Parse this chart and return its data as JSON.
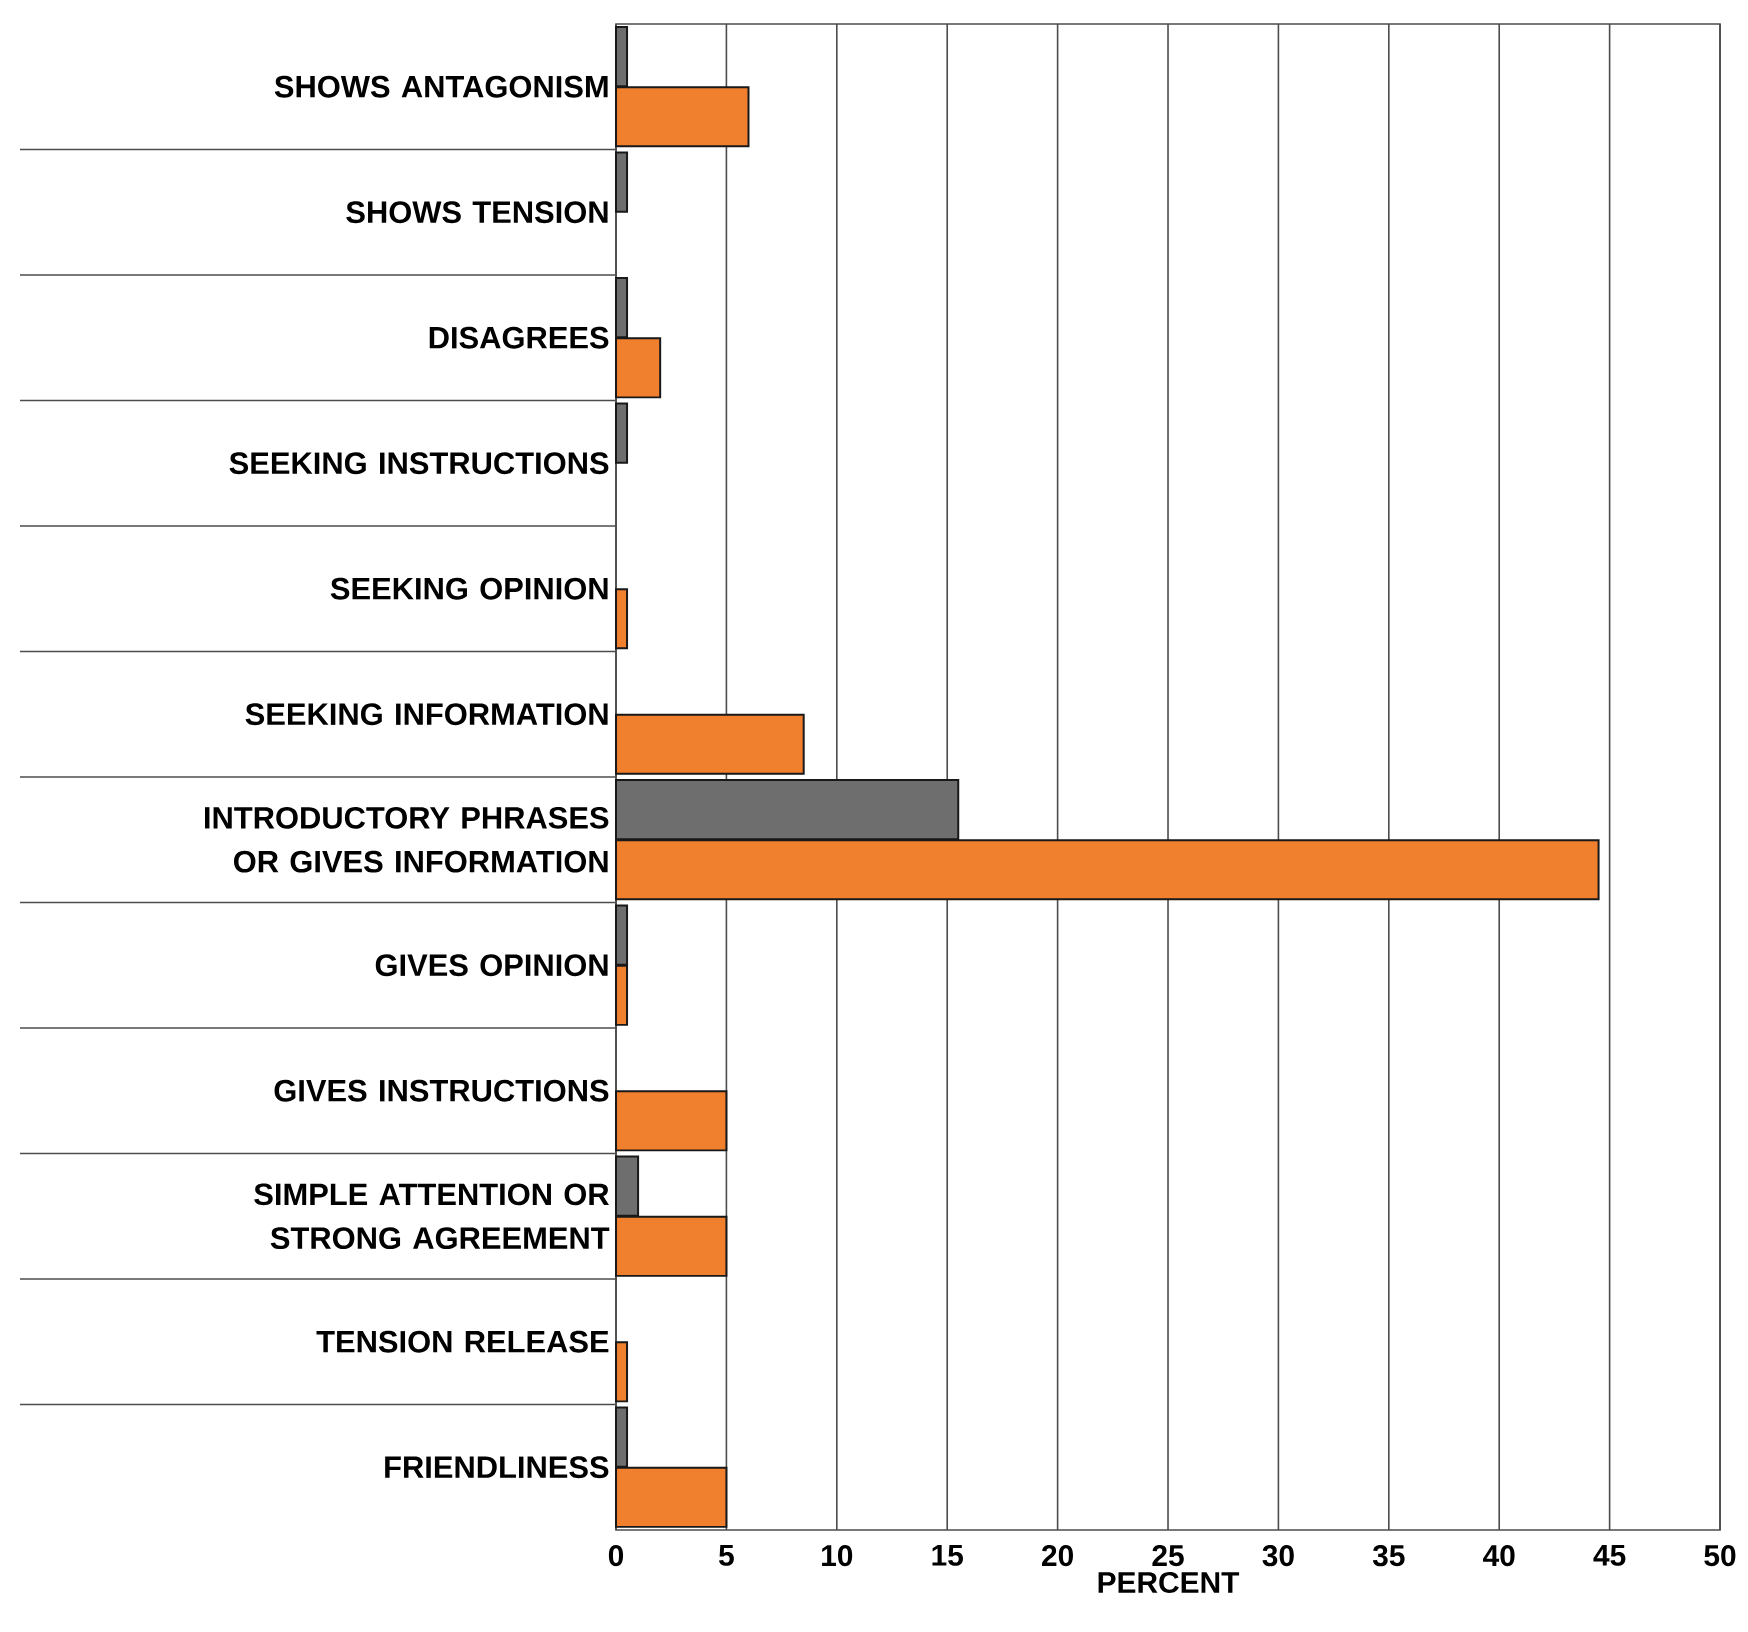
{
  "chart_data": {
    "type": "bar",
    "orientation": "horizontal",
    "xlabel": "PERCENT",
    "categories": [
      "SHOWS ANTAGONISM",
      "SHOWS TENSION",
      "DISAGREES",
      "SEEKING INSTRUCTIONS",
      "SEEKING OPINION",
      "SEEKING INFORMATION",
      "INTRODUCTORY PHRASES OR GIVES INFORMATION",
      "GIVES OPINION",
      "GIVES INSTRUCTIONS",
      "SIMPLE ATTENTION OR STRONG AGREEMENT",
      "TENSION RELEASE",
      "FRIENDLINESS"
    ],
    "series": [
      {
        "color": "#6e6e6e",
        "values": [
          0.5,
          0.5,
          0.5,
          0.5,
          null,
          null,
          15.5,
          0.5,
          null,
          1,
          null,
          0.5
        ]
      },
      {
        "color": "#f07f2e",
        "values": [
          6,
          null,
          2,
          null,
          0.5,
          8.5,
          44.5,
          0.5,
          5,
          5,
          0.5,
          5
        ]
      }
    ],
    "xlim": [
      0,
      50
    ],
    "xticks": [
      0,
      5,
      10,
      15,
      20,
      25,
      30,
      35,
      40,
      45,
      50
    ],
    "grid": "x"
  }
}
